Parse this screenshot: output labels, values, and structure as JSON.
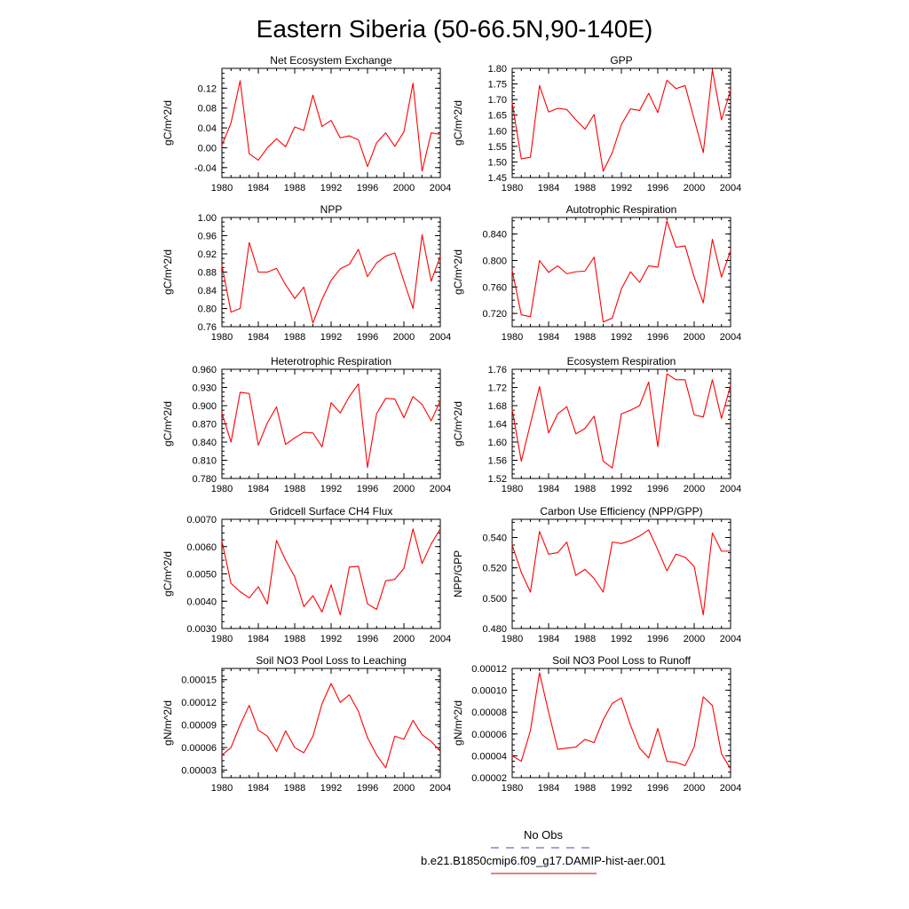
{
  "figure": {
    "title": "Eastern Siberia (50-66.5N,90-140E)",
    "legend": [
      {
        "label": "No Obs",
        "color": "#6b6bd6",
        "dash": "dashed"
      },
      {
        "label": "b.e21.B1850cmip6.f09_g17.DAMIP-hist-aer.001",
        "color": "#e03030",
        "dash": "solid"
      }
    ],
    "line_color": "#ff0000"
  },
  "chart_data": [
    {
      "type": "line",
      "title": "Net Ecosystem Exchange",
      "xlabel": "",
      "ylabel": "gC/m^2/d",
      "xlim": [
        1980,
        2004
      ],
      "ylim": [
        -0.06,
        0.16
      ],
      "xticks": [
        1980,
        1984,
        1988,
        1992,
        1996,
        2000,
        2004
      ],
      "yticks": [
        "-0.04",
        "0.00",
        "0.04",
        "0.08",
        "0.12"
      ],
      "x": [
        1980,
        1981,
        1982,
        1983,
        1984,
        1985,
        1986,
        1987,
        1988,
        1989,
        1990,
        1991,
        1992,
        1993,
        1994,
        1995,
        1996,
        1997,
        1998,
        1999,
        2000,
        2001,
        2002,
        2003,
        2004
      ],
      "series": [
        {
          "values": [
            0.005,
            0.05,
            0.135,
            -0.012,
            -0.025,
            0.0,
            0.018,
            0.002,
            0.042,
            0.035,
            0.106,
            0.043,
            0.055,
            0.02,
            0.024,
            0.016,
            -0.038,
            0.01,
            0.03,
            0.003,
            0.032,
            0.13,
            -0.047,
            0.03,
            0.027
          ]
        }
      ]
    },
    {
      "type": "line",
      "title": "GPP",
      "xlabel": "",
      "ylabel": "gC/m^2/d",
      "xlim": [
        1980,
        2004
      ],
      "ylim": [
        1.45,
        1.8
      ],
      "xticks": [
        1980,
        1984,
        1988,
        1992,
        1996,
        2000,
        2004
      ],
      "yticks": [
        "1.45",
        "1.50",
        "1.55",
        "1.60",
        "1.65",
        "1.70",
        "1.75",
        "1.80"
      ],
      "x": [
        1980,
        1981,
        1982,
        1983,
        1984,
        1985,
        1986,
        1987,
        1988,
        1989,
        1990,
        1991,
        1992,
        1993,
        1994,
        1995,
        1996,
        1997,
        1998,
        1999,
        2000,
        2001,
        2002,
        2003,
        2004
      ],
      "series": [
        {
          "values": [
            1.69,
            1.51,
            1.515,
            1.745,
            1.66,
            1.672,
            1.668,
            1.635,
            1.605,
            1.652,
            1.47,
            1.53,
            1.62,
            1.67,
            1.665,
            1.72,
            1.658,
            1.762,
            1.735,
            1.745,
            1.637,
            1.53,
            1.795,
            1.635,
            1.73
          ]
        }
      ]
    },
    {
      "type": "line",
      "title": "NPP",
      "xlabel": "",
      "ylabel": "gC/m^2/d",
      "xlim": [
        1980,
        2004
      ],
      "ylim": [
        0.76,
        1.0
      ],
      "xticks": [
        1980,
        1984,
        1988,
        1992,
        1996,
        2000,
        2004
      ],
      "yticks": [
        "0.76",
        "0.80",
        "0.84",
        "0.88",
        "0.92",
        "0.96",
        "1.00"
      ],
      "x": [
        1980,
        1981,
        1982,
        1983,
        1984,
        1985,
        1986,
        1987,
        1988,
        1989,
        1990,
        1991,
        1992,
        1993,
        1994,
        1995,
        1996,
        1997,
        1998,
        1999,
        2000,
        2001,
        2002,
        2003,
        2004
      ],
      "series": [
        {
          "values": [
            0.895,
            0.792,
            0.8,
            0.945,
            0.88,
            0.88,
            0.888,
            0.852,
            0.822,
            0.847,
            0.768,
            0.82,
            0.862,
            0.887,
            0.897,
            0.93,
            0.87,
            0.9,
            0.915,
            0.922,
            0.86,
            0.8,
            0.962,
            0.86,
            0.915
          ]
        }
      ]
    },
    {
      "type": "line",
      "title": "Autotrophic Respiration",
      "xlabel": "",
      "ylabel": "gC/m^2/d",
      "xlim": [
        1980,
        2004
      ],
      "ylim": [
        0.7,
        0.865
      ],
      "xticks": [
        1980,
        1984,
        1988,
        1992,
        1996,
        2000,
        2004
      ],
      "yticks": [
        "0.720",
        "0.760",
        "0.800",
        "0.840"
      ],
      "x": [
        1980,
        1981,
        1982,
        1983,
        1984,
        1985,
        1986,
        1987,
        1988,
        1989,
        1990,
        1991,
        1992,
        1993,
        1994,
        1995,
        1996,
        1997,
        1998,
        1999,
        2000,
        2001,
        2002,
        2003,
        2004
      ],
      "series": [
        {
          "values": [
            0.785,
            0.718,
            0.715,
            0.8,
            0.782,
            0.792,
            0.78,
            0.783,
            0.784,
            0.805,
            0.707,
            0.713,
            0.757,
            0.783,
            0.767,
            0.792,
            0.79,
            0.86,
            0.82,
            0.822,
            0.775,
            0.736,
            0.832,
            0.775,
            0.815
          ]
        }
      ]
    },
    {
      "type": "line",
      "title": "Heterotrophic Respiration",
      "xlabel": "",
      "ylabel": "gC/m^2/d",
      "xlim": [
        1980,
        2004
      ],
      "ylim": [
        0.78,
        0.96
      ],
      "xticks": [
        1980,
        1984,
        1988,
        1992,
        1996,
        2000,
        2004
      ],
      "yticks": [
        "0.780",
        "0.810",
        "0.840",
        "0.870",
        "0.900",
        "0.930",
        "0.960"
      ],
      "x": [
        1980,
        1981,
        1982,
        1983,
        1984,
        1985,
        1986,
        1987,
        1988,
        1989,
        1990,
        1991,
        1992,
        1993,
        1994,
        1995,
        1996,
        1997,
        1998,
        1999,
        2000,
        2001,
        2002,
        2003,
        2004
      ],
      "series": [
        {
          "values": [
            0.888,
            0.84,
            0.922,
            0.92,
            0.835,
            0.872,
            0.898,
            0.836,
            0.847,
            0.856,
            0.855,
            0.832,
            0.905,
            0.888,
            0.915,
            0.936,
            0.798,
            0.887,
            0.912,
            0.911,
            0.88,
            0.915,
            0.902,
            0.875,
            0.908
          ]
        }
      ]
    },
    {
      "type": "line",
      "title": "Ecosystem Respiration",
      "xlabel": "",
      "ylabel": "gC/m^2/d",
      "xlim": [
        1980,
        2004
      ],
      "ylim": [
        1.52,
        1.76
      ],
      "xticks": [
        1980,
        1984,
        1988,
        1992,
        1996,
        2000,
        2004
      ],
      "yticks": [
        "1.52",
        "1.56",
        "1.60",
        "1.64",
        "1.68",
        "1.72",
        "1.76"
      ],
      "x": [
        1980,
        1981,
        1982,
        1983,
        1984,
        1985,
        1986,
        1987,
        1988,
        1989,
        1990,
        1991,
        1992,
        1993,
        1994,
        1995,
        1996,
        1997,
        1998,
        1999,
        2000,
        2001,
        2002,
        2003,
        2004
      ],
      "series": [
        {
          "values": [
            1.672,
            1.558,
            1.64,
            1.722,
            1.62,
            1.662,
            1.678,
            1.618,
            1.63,
            1.657,
            1.558,
            1.543,
            1.662,
            1.67,
            1.68,
            1.732,
            1.59,
            1.75,
            1.737,
            1.737,
            1.66,
            1.655,
            1.737,
            1.652,
            1.725
          ]
        }
      ]
    },
    {
      "type": "line",
      "title": "Gridcell Surface CH4 Flux",
      "xlabel": "",
      "ylabel": "gC/m^2/d",
      "xlim": [
        1980,
        2004
      ],
      "ylim": [
        0.003,
        0.007
      ],
      "xticks": [
        1980,
        1984,
        1988,
        1992,
        1996,
        2000,
        2004
      ],
      "yticks": [
        "0.0030",
        "0.0040",
        "0.0050",
        "0.0060",
        "0.0070"
      ],
      "x": [
        1980,
        1981,
        1982,
        1983,
        1984,
        1985,
        1986,
        1987,
        1988,
        1989,
        1990,
        1991,
        1992,
        1993,
        1994,
        1995,
        1996,
        1997,
        1998,
        1999,
        2000,
        2001,
        2002,
        2003,
        2004
      ],
      "series": [
        {
          "values": [
            0.0062,
            0.00465,
            0.00435,
            0.00412,
            0.00453,
            0.0039,
            0.00623,
            0.0055,
            0.0049,
            0.0038,
            0.0042,
            0.0036,
            0.0046,
            0.0035,
            0.00525,
            0.00528,
            0.0039,
            0.0037,
            0.00475,
            0.0048,
            0.0052,
            0.00665,
            0.00538,
            0.0061,
            0.00665
          ]
        }
      ]
    },
    {
      "type": "line",
      "title": "Carbon Use Efficiency (NPP/GPP)",
      "xlabel": "",
      "ylabel": "NPP/GPP",
      "xlim": [
        1980,
        2004
      ],
      "ylim": [
        0.48,
        0.552
      ],
      "xticks": [
        1980,
        1984,
        1988,
        1992,
        1996,
        2000,
        2004
      ],
      "yticks": [
        "0.480",
        "0.500",
        "0.520",
        "0.540"
      ],
      "x": [
        1980,
        1981,
        1982,
        1983,
        1984,
        1985,
        1986,
        1987,
        1988,
        1989,
        1990,
        1991,
        1992,
        1993,
        1994,
        1995,
        1996,
        1997,
        1998,
        1999,
        2000,
        2001,
        2002,
        2003,
        2004
      ],
      "series": [
        {
          "values": [
            0.535,
            0.517,
            0.504,
            0.544,
            0.529,
            0.53,
            0.537,
            0.515,
            0.519,
            0.513,
            0.504,
            0.537,
            0.536,
            0.538,
            0.541,
            0.545,
            0.532,
            0.518,
            0.529,
            0.527,
            0.521,
            0.489,
            0.543,
            0.531,
            0.531
          ]
        }
      ]
    },
    {
      "type": "line",
      "title": "Soil NO3 Pool Loss to Leaching",
      "xlabel": "",
      "ylabel": "gN/m^2/d",
      "xlim": [
        1980,
        2004
      ],
      "ylim": [
        2e-05,
        0.000165
      ],
      "xticks": [
        1980,
        1984,
        1988,
        1992,
        1996,
        2000,
        2004
      ],
      "yticks": [
        "0.00003",
        "0.00006",
        "0.00009",
        "0.00012",
        "0.00015"
      ],
      "x": [
        1980,
        1981,
        1982,
        1983,
        1984,
        1985,
        1986,
        1987,
        1988,
        1989,
        1990,
        1991,
        1992,
        1993,
        1994,
        1995,
        1996,
        1997,
        1998,
        1999,
        2000,
        2001,
        2002,
        2003,
        2004
      ],
      "series": [
        {
          "values": [
            5e-05,
            6e-05,
            9e-05,
            0.000116,
            8.3e-05,
            7.5e-05,
            5.5e-05,
            8.2e-05,
            6e-05,
            5.3e-05,
            7.5e-05,
            0.000118,
            0.000145,
            0.00012,
            0.00013,
            0.000108,
            7.3e-05,
            5e-05,
            3.3e-05,
            7.5e-05,
            7.1e-05,
            9.6e-05,
            7.7e-05,
            6.8e-05,
            5.5e-05
          ]
        }
      ]
    },
    {
      "type": "line",
      "title": "Soil NO3 Pool Loss to Runoff",
      "xlabel": "",
      "ylabel": "gN/m^2/d",
      "xlim": [
        1980,
        2004
      ],
      "ylim": [
        2e-05,
        0.00012
      ],
      "xticks": [
        1980,
        1984,
        1988,
        1992,
        1996,
        2000,
        2004
      ],
      "yticks": [
        "0.00002",
        "0.00004",
        "0.00006",
        "0.00008",
        "0.00010",
        "0.00012"
      ],
      "x": [
        1980,
        1981,
        1982,
        1983,
        1984,
        1985,
        1986,
        1987,
        1988,
        1989,
        1990,
        1991,
        1992,
        1993,
        1994,
        1995,
        1996,
        1997,
        1998,
        1999,
        2000,
        2001,
        2002,
        2003,
        2004
      ],
      "series": [
        {
          "values": [
            4e-05,
            3.5e-05,
            6.3e-05,
            0.000116,
            8e-05,
            4.6e-05,
            4.7e-05,
            4.8e-05,
            5.5e-05,
            5.2e-05,
            7.3e-05,
            8.8e-05,
            9.3e-05,
            6.8e-05,
            4.7e-05,
            3.8e-05,
            6.5e-05,
            3.5e-05,
            3.4e-05,
            3.1e-05,
            4.8e-05,
            9.4e-05,
            8.6e-05,
            4.2e-05,
            2.8e-05
          ]
        }
      ]
    }
  ]
}
